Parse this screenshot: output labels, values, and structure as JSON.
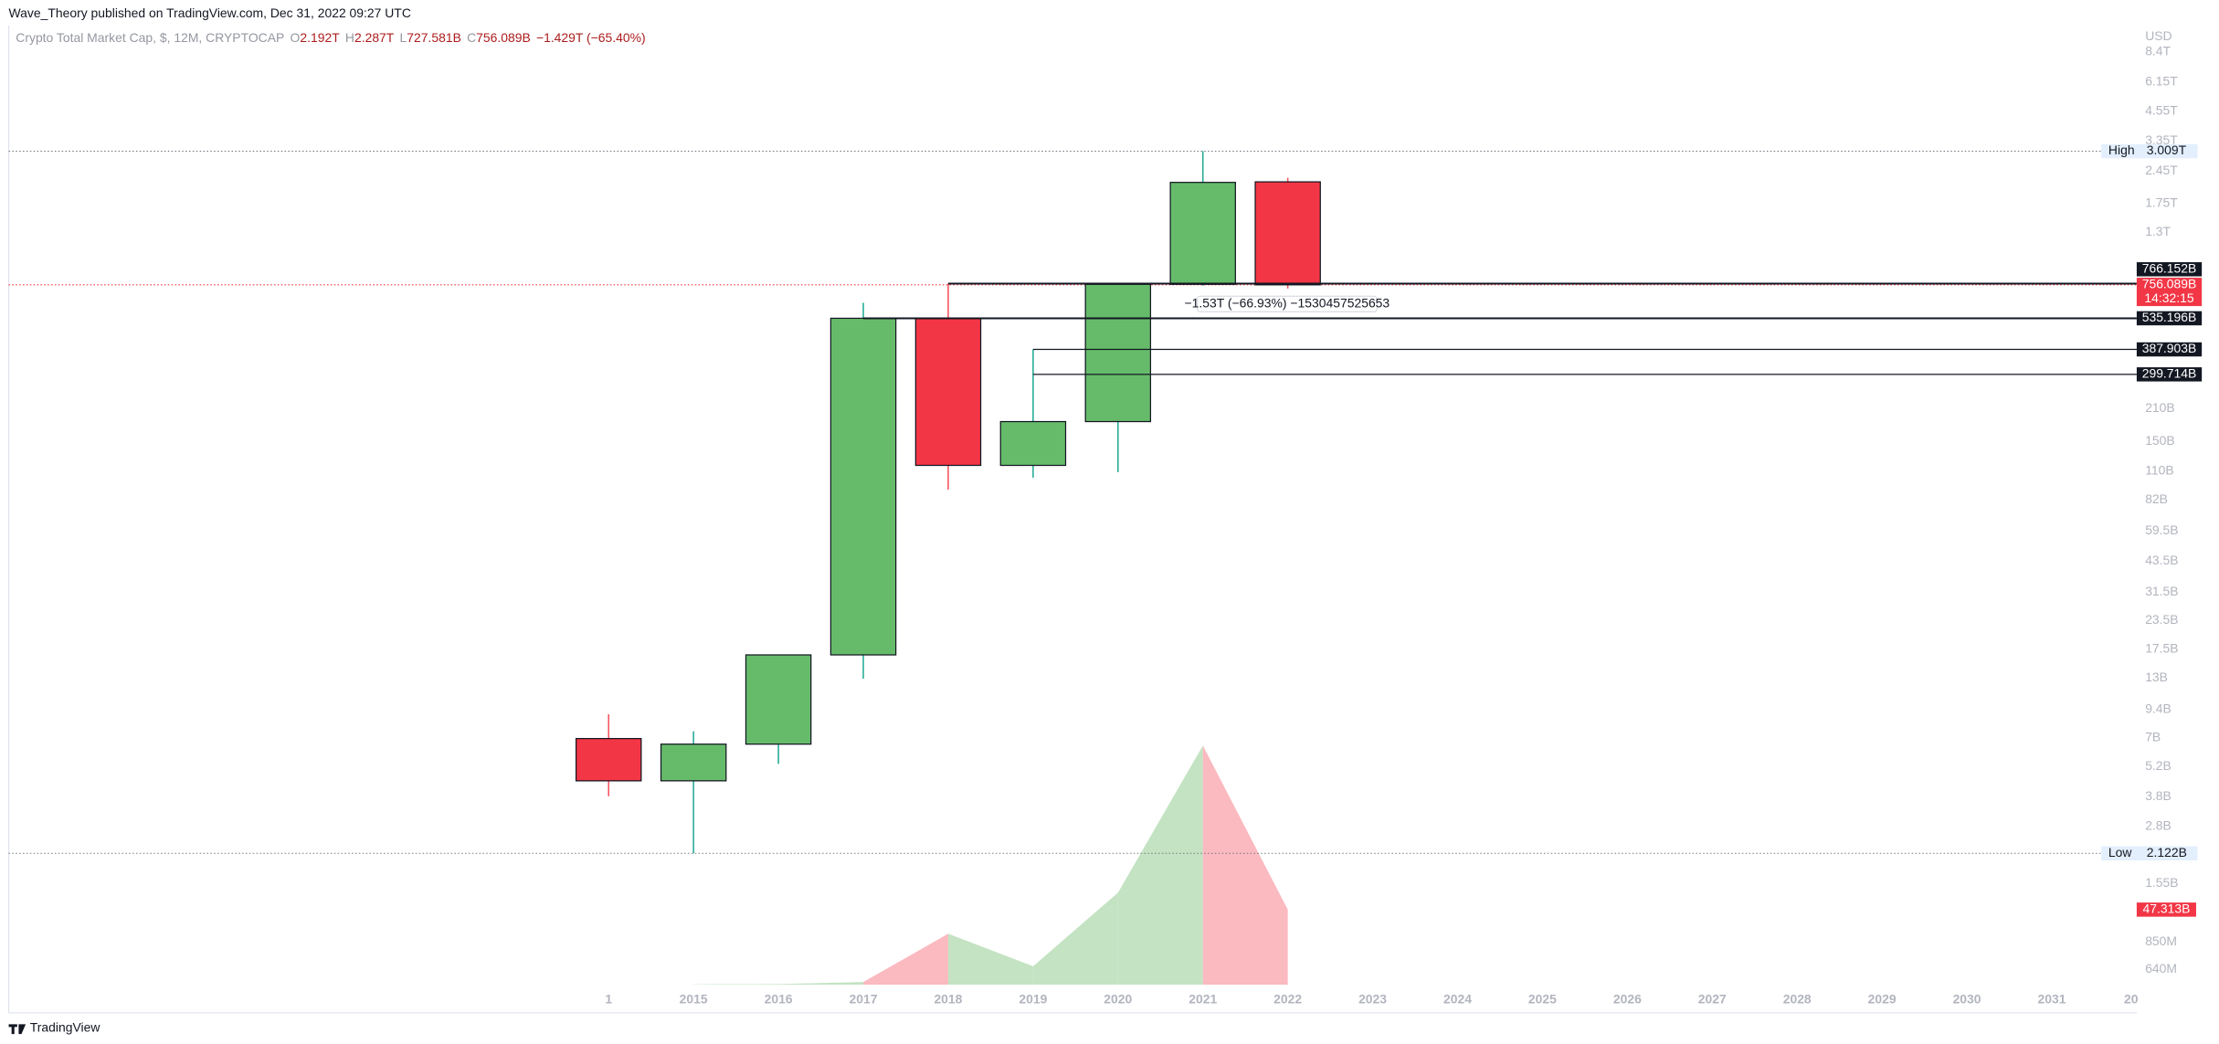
{
  "header": {
    "publisher": "Wave_Theory published on TradingView.com, Dec 31, 2022 09:27 UTC",
    "brand": "TradingView"
  },
  "chart_data": {
    "type": "candlestick",
    "title": "Crypto Total Market Cap, $, 12M, CRYPTOCAP",
    "ohlc_legend": [
      {
        "key": "O",
        "text": "2.192T"
      },
      {
        "key": "H",
        "text": "2.287T"
      },
      {
        "key": "L",
        "text": "727.581B"
      },
      {
        "key": "C",
        "text": "756.089B"
      }
    ],
    "change": "−1.429T (−65.40%)",
    "currency": "USD",
    "x_labels": [
      "1",
      "2015",
      "2016",
      "2017",
      "2018",
      "2019",
      "2020",
      "2021",
      "2022",
      "2023",
      "2024",
      "2025",
      "2026",
      "2027",
      "2028",
      "2029",
      "2030",
      "2031",
      "20"
    ],
    "open": [
      6950000000,
      4490000000,
      6560000000,
      16500000000,
      535196000000,
      117000000000,
      184000000000,
      760000000000,
      2192000000000
    ],
    "high": [
      8930000000,
      7490000000,
      16500000000,
      628000000000,
      766152000000,
      387903000000,
      760000000000,
      3009000000000,
      2287000000000
    ],
    "low": [
      3830000000,
      2122000000,
      5350000000,
      12900000000,
      91000000000,
      103000000000,
      109000000000,
      750000000000,
      727581000000
    ],
    "close": [
      4490000000,
      6560000000,
      16500000000,
      535196000000,
      117000000000,
      184000000000,
      760000000000,
      2180000000000,
      756089000000
    ],
    "volume": [
      null,
      150000000,
      350000000,
      1600000000,
      32100000000,
      11600000000,
      58000000000,
      150900000000,
      47313000000
    ],
    "volume_last_label": "47.313B",
    "up_color": "#66bb6a",
    "down_color": "#f23645",
    "up_wick_color": "#22ab94",
    "down_wick_color": "#f7525f",
    "volume_up_color": "#c3e3c2",
    "volume_down_color": "#fbb9c0",
    "log_scale": true,
    "ylim": [
      408000000,
      9260000000000
    ],
    "yticks": [
      {
        "value": 8400000000000,
        "label": "8.4T"
      },
      {
        "value": 6150000000000,
        "label": "6.15T"
      },
      {
        "value": 4550000000000,
        "label": "4.55T"
      },
      {
        "value": 3350000000000,
        "label": "3.35T"
      },
      {
        "value": 2450000000000,
        "label": "2.45T"
      },
      {
        "value": 1750000000000,
        "label": "1.75T"
      },
      {
        "value": 1300000000000,
        "label": "1.3T"
      },
      {
        "value": 210000000000,
        "label": "210B"
      },
      {
        "value": 150000000000,
        "label": "150B"
      },
      {
        "value": 110000000000,
        "label": "110B"
      },
      {
        "value": 82000000000,
        "label": "82B"
      },
      {
        "value": 59500000000,
        "label": "59.5B"
      },
      {
        "value": 43500000000,
        "label": "43.5B"
      },
      {
        "value": 31500000000,
        "label": "31.5B"
      },
      {
        "value": 23500000000,
        "label": "23.5B"
      },
      {
        "value": 17500000000,
        "label": "17.5B"
      },
      {
        "value": 13000000000,
        "label": "13B"
      },
      {
        "value": 9400000000,
        "label": "9.4B"
      },
      {
        "value": 7000000000,
        "label": "7B"
      },
      {
        "value": 5200000000,
        "label": "5.2B"
      },
      {
        "value": 3800000000,
        "label": "3.8B"
      },
      {
        "value": 2800000000,
        "label": "2.8B"
      },
      {
        "value": 1550000000,
        "label": "1.55B"
      },
      {
        "value": 850000000,
        "label": "850M"
      },
      {
        "value": 640000000,
        "label": "640M"
      }
    ],
    "high_line": {
      "text": "High",
      "value": 3009000000000,
      "label": "3.009T"
    },
    "low_line": {
      "text": "Low",
      "value": 2122000000,
      "label": "2.122B"
    },
    "current_price": {
      "value": 756089000000,
      "label": "756.089B",
      "countdown": "14:32:15"
    },
    "levels": [
      {
        "value": 766152000000,
        "label": "766.152B",
        "start": "2018"
      },
      {
        "value": 535196000000,
        "label": "535.196B",
        "start": "2017"
      },
      {
        "value": 387903000000,
        "label": "387.903B",
        "start": "2019"
      },
      {
        "value": 299714000000,
        "label": "299.714B",
        "start": "2019"
      }
    ],
    "measure": "−1.53T (−66.93%) −1530457525653"
  }
}
